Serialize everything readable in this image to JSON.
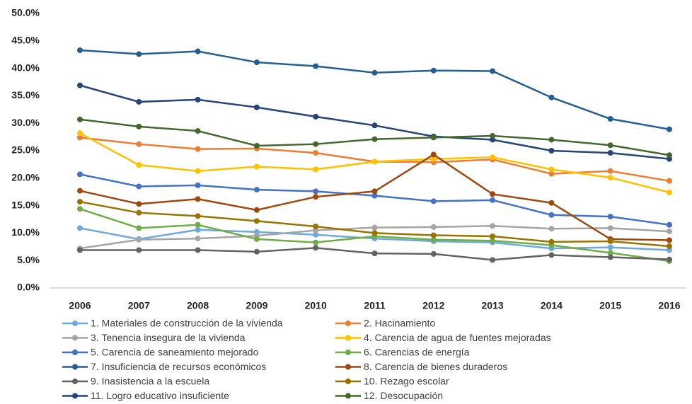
{
  "chart_data": {
    "type": "line",
    "categories": [
      "2006",
      "2007",
      "2008",
      "2009",
      "2010",
      "2011",
      "2012",
      "2013",
      "2014",
      "2015",
      "2016"
    ],
    "ylim": [
      0,
      50
    ],
    "yticks": [
      {
        "value": 0,
        "label": "0.0%"
      },
      {
        "value": 5,
        "label": "5.0%"
      },
      {
        "value": 10,
        "label": "10.0%"
      },
      {
        "value": 15,
        "label": "15.0%"
      },
      {
        "value": 20,
        "label": "20.0%"
      },
      {
        "value": 25,
        "label": "25.0%"
      },
      {
        "value": 30,
        "label": "30.0%"
      },
      {
        "value": 35,
        "label": "35.0%"
      },
      {
        "value": 40,
        "label": "40.0%"
      },
      {
        "value": 45,
        "label": "45.0%"
      },
      {
        "value": 50,
        "label": "50.0%"
      }
    ],
    "grid": false,
    "legend": "bottom",
    "series": [
      {
        "name": "1. Materiales de construcción de la vivienda",
        "color": "#6fa8dc",
        "values": [
          10.9,
          8.9,
          10.6,
          10.2,
          9.7,
          9.0,
          8.5,
          8.3,
          7.2,
          7.4,
          6.9
        ]
      },
      {
        "name": "2. Hacinamiento",
        "color": "#ed7d31",
        "values": [
          27.4,
          26.2,
          25.3,
          25.4,
          24.6,
          23.0,
          22.9,
          23.4,
          20.8,
          21.3,
          19.5
        ]
      },
      {
        "name": "3. Tenencia insegura de la vivienda",
        "color": "#a5a5a5",
        "values": [
          7.2,
          8.8,
          9.0,
          9.5,
          10.5,
          11.0,
          11.1,
          11.3,
          10.8,
          10.9,
          10.3
        ]
      },
      {
        "name": "4. Carencia de agua de fuentes mejoradas",
        "color": "#ffc000",
        "values": [
          28.2,
          22.4,
          21.3,
          22.1,
          21.6,
          23.0,
          23.5,
          23.8,
          21.6,
          20.1,
          17.4
        ]
      },
      {
        "name": "5. Carencia de saneamiento mejorado",
        "color": "#4472c4",
        "values": [
          20.7,
          18.5,
          18.7,
          17.9,
          17.6,
          16.8,
          15.8,
          16.0,
          13.3,
          13.0,
          11.5
        ]
      },
      {
        "name": "6. Carencias de energía",
        "color": "#70ad47",
        "values": [
          14.4,
          10.9,
          11.5,
          8.9,
          8.3,
          9.4,
          8.8,
          8.6,
          7.8,
          6.4,
          4.9
        ]
      },
      {
        "name": "7. Insuficiencia de recursos económicos",
        "color": "#255e91",
        "values": [
          43.3,
          42.6,
          43.1,
          41.1,
          40.4,
          39.2,
          39.6,
          39.5,
          34.7,
          30.8,
          28.9
        ]
      },
      {
        "name": "8. Carencia de bienes duraderos",
        "color": "#9e480e",
        "values": [
          17.7,
          15.3,
          16.2,
          14.2,
          16.6,
          17.6,
          24.3,
          17.1,
          15.5,
          8.9,
          8.7
        ]
      },
      {
        "name": "9. Inasistencia a la escuela",
        "color": "#636363",
        "values": [
          6.9,
          6.9,
          6.9,
          6.6,
          7.3,
          6.3,
          6.2,
          5.1,
          6.0,
          5.6,
          5.2
        ]
      },
      {
        "name": "10. Rezago escolar",
        "color": "#997300",
        "values": [
          15.7,
          13.7,
          13.1,
          12.2,
          11.2,
          10.0,
          9.6,
          9.4,
          8.4,
          8.5,
          7.6
        ]
      },
      {
        "name": "11. Logro educativo insuficiente",
        "color": "#264478",
        "values": [
          36.9,
          33.9,
          34.3,
          32.9,
          31.2,
          29.6,
          27.6,
          27.0,
          25.0,
          24.6,
          23.5
        ]
      },
      {
        "name": "12. Desocupación",
        "color": "#43682b",
        "values": [
          30.7,
          29.4,
          28.6,
          25.9,
          26.2,
          27.1,
          27.4,
          27.7,
          27.0,
          26.0,
          24.2
        ]
      }
    ]
  }
}
